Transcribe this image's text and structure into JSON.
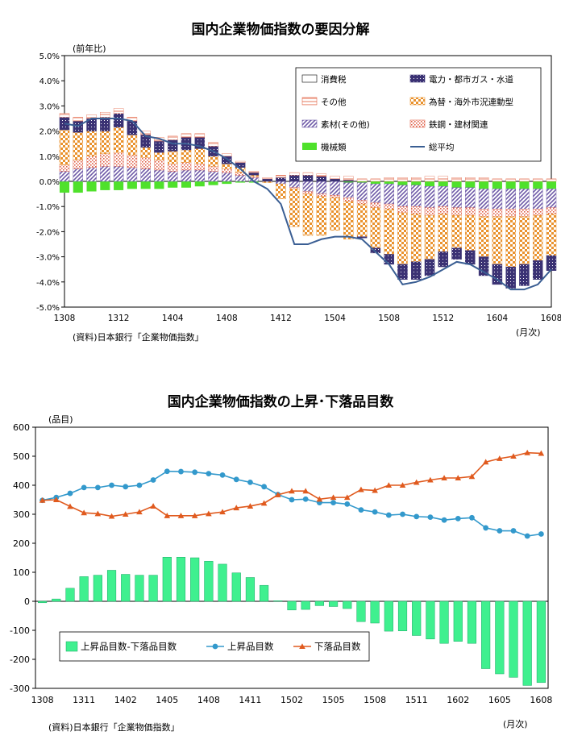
{
  "colors": {
    "tax": "#1a1a1a",
    "power": "#3b3274",
    "other": "#e46a4c",
    "fx": "#e9922e",
    "material": "#6f5ba8",
    "steel": "#e0614a",
    "machinery": "#4fe12b",
    "avg": "#3a5e93",
    "diffbar": "#3ff08f",
    "rise": "#3399cc",
    "fall": "#e05a1e"
  },
  "chart_data": [
    {
      "type": "bar",
      "title": "国内企業物価指数の要因分解",
      "ylabel": "(前年比)",
      "xlabel": "(月次)",
      "source": "(資料)日本銀行「企業物価指数」",
      "ylim": [
        -5,
        5
      ],
      "yticks": [
        "5.0%",
        "4.0%",
        "3.0%",
        "2.0%",
        "1.0%",
        "0.0%",
        "-1.0%",
        "-2.0%",
        "-3.0%",
        "-4.0%",
        "-5.0%"
      ],
      "xticks": [
        "1308",
        "1312",
        "1404",
        "1408",
        "1412",
        "1504",
        "1508",
        "1512",
        "1604",
        "1608"
      ],
      "categories": [
        "1308",
        "1309",
        "1310",
        "1311",
        "1312",
        "1401",
        "1402",
        "1403",
        "1404",
        "1405",
        "1406",
        "1407",
        "1408",
        "1409",
        "1410",
        "1411",
        "1412",
        "1501",
        "1502",
        "1503",
        "1504",
        "1505",
        "1506",
        "1507",
        "1508",
        "1509",
        "1510",
        "1511",
        "1512",
        "1601",
        "1602",
        "1603",
        "1604",
        "1605",
        "1606",
        "1607",
        "1608"
      ],
      "legend": [
        "消費税",
        "電力・都市ガス・水道",
        "その他",
        "為替・海外市況連動型",
        "素材(その他)",
        "鉄鋼・建材関連",
        "機械類",
        "総平均"
      ],
      "series": [
        {
          "name": "機械類",
          "values": [
            -0.45,
            -0.45,
            -0.4,
            -0.35,
            -0.35,
            -0.3,
            -0.3,
            -0.3,
            -0.25,
            -0.25,
            -0.2,
            -0.15,
            -0.1,
            -0.05,
            -0.05,
            0,
            0,
            0,
            0,
            0,
            0,
            -0.05,
            -0.05,
            -0.1,
            -0.1,
            -0.15,
            -0.15,
            -0.2,
            -0.2,
            -0.25,
            -0.25,
            -0.3,
            -0.3,
            -0.3,
            -0.3,
            -0.3,
            -0.3
          ]
        },
        {
          "name": "素材(その他)",
          "values": [
            0.4,
            0.5,
            0.55,
            0.6,
            0.6,
            0.55,
            0.5,
            0.45,
            0.4,
            0.45,
            0.45,
            0.4,
            0.35,
            0.25,
            0.15,
            0,
            -0.1,
            -0.25,
            -0.4,
            -0.5,
            -0.55,
            -0.6,
            -0.7,
            -0.75,
            -0.8,
            -0.85,
            -0.85,
            -0.85,
            -0.8,
            -0.8,
            -0.8,
            -0.8,
            -0.8,
            -0.8,
            -0.8,
            -0.8,
            -0.75
          ]
        },
        {
          "name": "鉄鋼・建材関連",
          "values": [
            0.25,
            0.35,
            0.45,
            0.5,
            0.55,
            0.5,
            0.45,
            0.4,
            0.3,
            0.3,
            0.25,
            0.2,
            0.15,
            0.1,
            0.05,
            0,
            0,
            -0.05,
            -0.1,
            -0.1,
            -0.1,
            -0.15,
            -0.15,
            -0.2,
            -0.2,
            -0.25,
            -0.3,
            -0.3,
            -0.3,
            -0.3,
            -0.3,
            -0.3,
            -0.3,
            -0.3,
            -0.3,
            -0.25,
            -0.25
          ]
        },
        {
          "name": "為替・海外市況連動型",
          "values": [
            1.4,
            1.1,
            1.0,
            0.9,
            1.0,
            0.8,
            0.4,
            0.3,
            0.5,
            0.5,
            0.6,
            0.4,
            0.2,
            0.2,
            0.05,
            -0.05,
            -0.6,
            -1.5,
            -1.65,
            -1.55,
            -1.3,
            -1.5,
            -1.3,
            -1.6,
            -1.8,
            -2.05,
            -1.9,
            -1.75,
            -1.5,
            -1.3,
            -1.4,
            -1.6,
            -1.9,
            -2.0,
            -1.9,
            -1.8,
            -1.65
          ]
        },
        {
          "name": "電力・都市ガス・水道",
          "values": [
            0.5,
            0.45,
            0.5,
            0.55,
            0.55,
            0.55,
            0.5,
            0.45,
            0.45,
            0.5,
            0.45,
            0.4,
            0.3,
            0.2,
            0.1,
            0.1,
            0.15,
            0.25,
            0.25,
            0.2,
            0.1,
            0.05,
            -0.05,
            -0.2,
            -0.4,
            -0.6,
            -0.7,
            -0.65,
            -0.6,
            -0.45,
            -0.55,
            -0.75,
            -0.8,
            -0.85,
            -0.85,
            -0.75,
            -0.6
          ]
        },
        {
          "name": "その他",
          "values": [
            0.15,
            0.15,
            0.15,
            0.2,
            0.2,
            0.15,
            0.15,
            0.15,
            0.15,
            0.15,
            0.15,
            0.15,
            0.1,
            0.05,
            0.05,
            0.05,
            0.1,
            0.1,
            0.1,
            0.1,
            0.1,
            0.15,
            0.1,
            0.1,
            0.15,
            0.15,
            0.15,
            0.2,
            0.2,
            0.15,
            0.15,
            0.15,
            0.1,
            0.1,
            0.1,
            0.1,
            0.1
          ]
        },
        {
          "name": "消費税",
          "values": [
            0,
            0,
            0,
            0,
            0,
            0,
            0,
            0,
            0,
            0,
            0,
            0,
            0,
            0,
            0,
            0,
            0,
            0,
            0,
            0,
            0,
            0,
            0,
            0,
            0,
            0,
            0,
            0,
            0,
            0,
            0,
            0,
            0,
            0,
            0,
            0,
            0
          ]
        },
        {
          "name": "総平均",
          "type": "line",
          "values": [
            2.3,
            2.2,
            2.5,
            2.5,
            2.5,
            2.4,
            1.8,
            1.7,
            1.5,
            1.5,
            1.4,
            1.2,
            0.9,
            0.5,
            0.0,
            -0.3,
            -0.9,
            -2.5,
            -2.5,
            -2.3,
            -2.2,
            -2.2,
            -2.3,
            -2.8,
            -3.3,
            -4.1,
            -4.0,
            -3.8,
            -3.5,
            -3.2,
            -3.3,
            -3.6,
            -3.9,
            -4.3,
            -4.3,
            -4.1,
            -3.5
          ]
        }
      ]
    },
    {
      "type": "bar",
      "title": "国内企業物価指数の上昇･下落品目数",
      "ylabel": "(品目)",
      "xlabel": "(月次)",
      "source": "(資料)日本銀行「企業物価指数」",
      "ylim": [
        -300,
        600
      ],
      "yticks": [
        "600",
        "500",
        "400",
        "300",
        "200",
        "100",
        "0",
        "-100",
        "-200",
        "-300"
      ],
      "xticks": [
        "1308",
        "1311",
        "1402",
        "1405",
        "1408",
        "1411",
        "1502",
        "1505",
        "1508",
        "1511",
        "1602",
        "1605",
        "1608"
      ],
      "categories": [
        "1308",
        "1309",
        "1310",
        "1311",
        "1312",
        "1401",
        "1402",
        "1403",
        "1404",
        "1405",
        "1406",
        "1407",
        "1408",
        "1409",
        "1410",
        "1411",
        "1412",
        "1501",
        "1502",
        "1503",
        "1504",
        "1505",
        "1506",
        "1507",
        "1508",
        "1509",
        "1510",
        "1511",
        "1512",
        "1601",
        "1602",
        "1603",
        "1604",
        "1605",
        "1606",
        "1607",
        "1608"
      ],
      "legend": [
        "上昇品目数-下落品目数",
        "上昇品目数",
        "下落品目数"
      ],
      "series": [
        {
          "name": "上昇品目数-下落品目数",
          "values": [
            -5,
            8,
            45,
            85,
            90,
            107,
            93,
            90,
            90,
            152,
            152,
            150,
            138,
            128,
            98,
            82,
            55,
            2,
            -30,
            -28,
            -15,
            -18,
            -25,
            -70,
            -75,
            -103,
            -102,
            -118,
            -130,
            -145,
            -138,
            -145,
            -232,
            -250,
            -262,
            -290,
            -280
          ]
        },
        {
          "name": "上昇品目数",
          "values": [
            348,
            358,
            372,
            392,
            392,
            400,
            395,
            400,
            418,
            448,
            447,
            445,
            440,
            435,
            420,
            410,
            395,
            368,
            350,
            352,
            340,
            340,
            335,
            315,
            308,
            297,
            300,
            292,
            290,
            280,
            285,
            288,
            253,
            243,
            243,
            225,
            232
          ]
        },
        {
          "name": "下落品目数",
          "values": [
            348,
            350,
            327,
            305,
            302,
            293,
            300,
            308,
            328,
            295,
            295,
            295,
            302,
            308,
            322,
            328,
            338,
            367,
            380,
            380,
            352,
            358,
            358,
            385,
            382,
            400,
            400,
            410,
            418,
            425,
            425,
            430,
            480,
            492,
            500,
            512,
            510
          ]
        }
      ]
    }
  ]
}
